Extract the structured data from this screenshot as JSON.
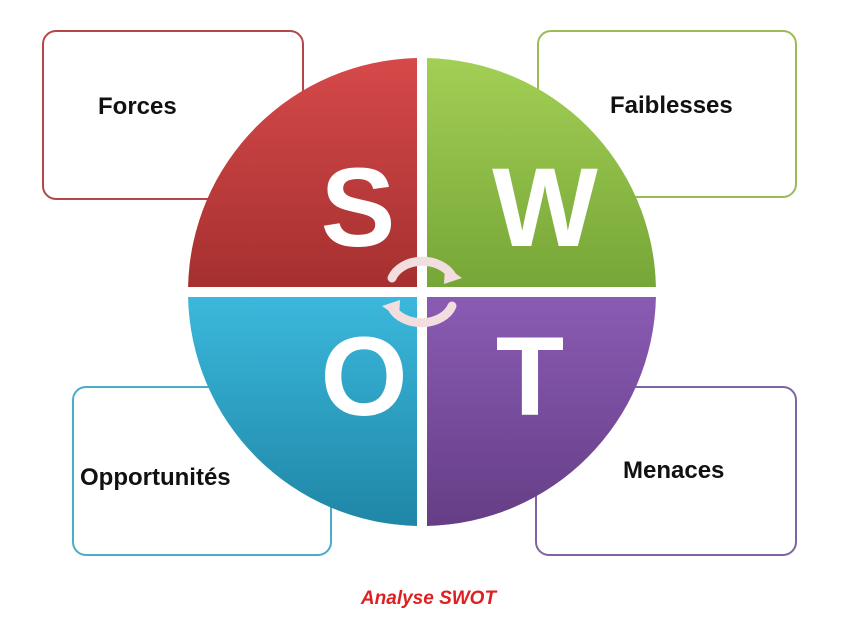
{
  "boxes": {
    "strengths": "Forces",
    "weaknesses": "Faiblesses",
    "opportunities": "Opportunités",
    "threats": "Menaces"
  },
  "letters": {
    "s": "S",
    "w": "W",
    "o": "O",
    "t": "T"
  },
  "colors": {
    "strengths": "#c0393b",
    "weaknesses": "#8cbd44",
    "opportunities": "#31a9cc",
    "threats": "#7a4f9e",
    "caption": "#e02020"
  },
  "icons": {
    "cycle": "circular-arrows-icon"
  },
  "caption": "Analyse SWOT"
}
